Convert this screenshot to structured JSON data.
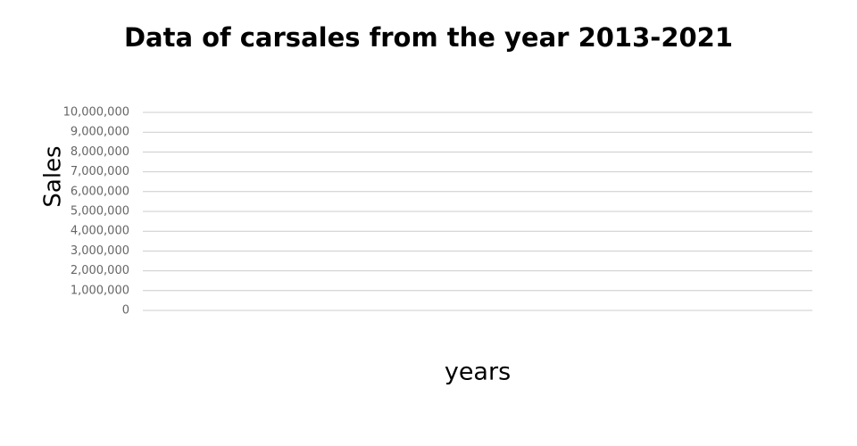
{
  "chart_data": {
    "type": "line",
    "title": "Data of carsales from the year 2013-2021",
    "x_label": "years",
    "y_label": "Sales",
    "ylim": [
      0,
      10000000
    ],
    "yticks": [
      0,
      {
        "value": 1000000,
        "label": "1,000,000"
      },
      {
        "value": 2000000,
        "label": "2,000,000"
      },
      {
        "value": 3000000,
        "label": "3,000,000"
      },
      {
        "value": 4000000,
        "label": "4,000,000"
      },
      {
        "value": 5000000,
        "label": "5,000,000"
      },
      {
        "value": 6000000,
        "label": "6,000,000"
      },
      {
        "value": 7000000,
        "label": "7,000,000"
      },
      {
        "value": 8000000,
        "label": "8,000,000"
      },
      {
        "value": 9000000,
        "label": "9,000,000"
      },
      {
        "value": 10000000,
        "label": "10,000,000"
      }
    ],
    "grid": true
  }
}
